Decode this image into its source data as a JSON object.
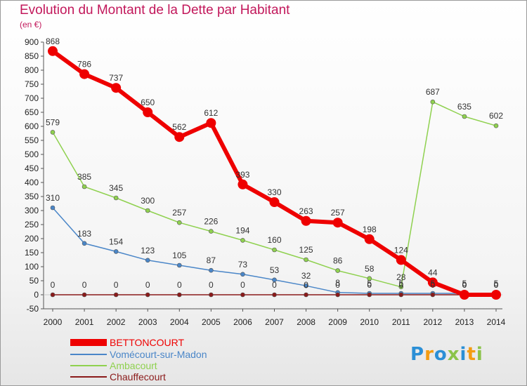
{
  "page": {
    "title": "Evolution du Montant de la Dette par Habitant",
    "subtitle": "(en €)",
    "logo": "Proxiti"
  },
  "colors": {
    "title": "#c2185b",
    "BETTONCOURT": "#ee0000",
    "Vomécourt-sur-Madon": "#4a86c8",
    "Ambacourt": "#8fd14f",
    "Chauffecourt": "#8b1a1a"
  },
  "chart_data": {
    "type": "line",
    "title": "Evolution du Montant de la Dette par Habitant",
    "ylabel": "(en €)",
    "xlabel": "",
    "x": [
      "2000",
      "2001",
      "2002",
      "2003",
      "2004",
      "2005",
      "2006",
      "2007",
      "2008",
      "2009",
      "2010",
      "2011",
      "2012",
      "2013",
      "2014"
    ],
    "ylim": [
      -50,
      900
    ],
    "yticks": [
      -50,
      0,
      50,
      100,
      150,
      200,
      250,
      300,
      350,
      400,
      450,
      500,
      550,
      600,
      650,
      700,
      750,
      800,
      850,
      900
    ],
    "legend_position": "bottom-left",
    "grid": false,
    "series": [
      {
        "name": "BETTONCOURT",
        "values": [
          868,
          786,
          737,
          650,
          562,
          612,
          393,
          330,
          263,
          257,
          198,
          124,
          44,
          0,
          0
        ],
        "labels": [
          "868",
          "786",
          "737",
          "650",
          "562",
          "612",
          "393",
          "330",
          "263",
          "257",
          "198",
          "124",
          "44",
          "0",
          "0"
        ]
      },
      {
        "name": "Vomécourt-sur-Madon",
        "values": [
          310,
          183,
          154,
          123,
          105,
          87,
          73,
          53,
          32,
          8,
          5,
          5,
          5,
          5,
          5
        ],
        "labels": [
          "310",
          "183",
          "154",
          "123",
          "105",
          "87",
          "73",
          "53",
          "32",
          "8",
          "5",
          "5",
          "5",
          "5",
          "5"
        ]
      },
      {
        "name": "Ambacourt",
        "values": [
          579,
          385,
          345,
          300,
          257,
          226,
          194,
          160,
          125,
          86,
          58,
          28,
          687,
          635,
          602
        ],
        "labels": [
          "579",
          "385",
          "345",
          "300",
          "257",
          "226",
          "194",
          "160",
          "125",
          "86",
          "58",
          "28",
          "687",
          "635",
          "602"
        ]
      },
      {
        "name": "Chauffecourt",
        "values": [
          0,
          0,
          0,
          0,
          0,
          0,
          0,
          0,
          0,
          0,
          0,
          0,
          0,
          0,
          0
        ],
        "labels": [
          "0",
          "0",
          "0",
          "0",
          "0",
          "0",
          "0",
          "0",
          "0",
          "0",
          "0",
          "0",
          "0",
          "0",
          "0"
        ]
      }
    ]
  }
}
